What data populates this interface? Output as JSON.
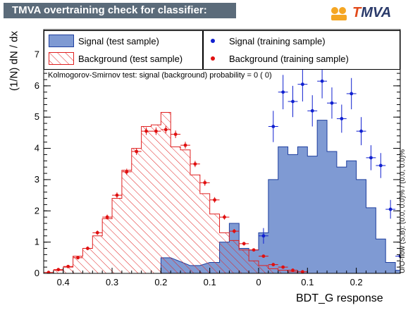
{
  "title": "TMVA overtraining check for classifier: BDT_G",
  "logo_text": "TMVA",
  "colors": {
    "title_bg": "#5b6b7a",
    "signal_fill": "#7f9ad3",
    "signal_line": "#1f3f9f",
    "background_hatch": "#e02020",
    "signal_marker": "#1020d0",
    "background_marker": "#e01010"
  },
  "chart_data": {
    "type": "histogram",
    "title": "TMVA overtraining check for classifier: BDT_G",
    "xlabel": "BDT_G response",
    "ylabel": "(1/N) dN / dx",
    "x_axis_reversed": true,
    "xlim": [
      0.44,
      -0.29
    ],
    "ylim": [
      0,
      7.8
    ],
    "x_ticks": [
      "0.4",
      "0.3",
      "0.2",
      "0.1",
      "0",
      "0.1",
      "0.2"
    ],
    "y_ticks": [
      "0",
      "1",
      "2",
      "3",
      "4",
      "5",
      "6",
      "7"
    ],
    "bin_width": 0.02,
    "legend": [
      {
        "label": "Signal (test sample)",
        "style": "filled-blue"
      },
      {
        "label": "Background (test sample)",
        "style": "hatched-red"
      },
      {
        "label": "Signal (training sample)",
        "style": "blue-points"
      },
      {
        "label": "Background (training sample)",
        "style": "red-points"
      }
    ],
    "annotation": "Kolmogorov-Smirnov test: signal (background) probability =     0 (    0)",
    "side_note": "U/O-flow (S,B): (0.0, 0.0)% / (0.0, 0.0)%",
    "background_test": [
      {
        "x": 0.44,
        "y": 0.0
      },
      {
        "x": 0.42,
        "y": 0.1
      },
      {
        "x": 0.4,
        "y": 0.2
      },
      {
        "x": 0.38,
        "y": 0.55
      },
      {
        "x": 0.36,
        "y": 0.8
      },
      {
        "x": 0.34,
        "y": 1.2
      },
      {
        "x": 0.32,
        "y": 1.75
      },
      {
        "x": 0.3,
        "y": 2.4
      },
      {
        "x": 0.28,
        "y": 3.3
      },
      {
        "x": 0.26,
        "y": 4.0
      },
      {
        "x": 0.24,
        "y": 4.7
      },
      {
        "x": 0.22,
        "y": 4.75
      },
      {
        "x": 0.2,
        "y": 5.15
      },
      {
        "x": 0.18,
        "y": 4.05
      },
      {
        "x": 0.16,
        "y": 3.95
      },
      {
        "x": 0.14,
        "y": 3.15
      },
      {
        "x": 0.12,
        "y": 2.55
      },
      {
        "x": 0.1,
        "y": 1.9
      },
      {
        "x": 0.08,
        "y": 1.3
      },
      {
        "x": 0.06,
        "y": 1.05
      },
      {
        "x": 0.04,
        "y": 0.75
      },
      {
        "x": 0.02,
        "y": 0.4
      },
      {
        "x": 0.0,
        "y": 0.25
      },
      {
        "x": -0.02,
        "y": 0.15
      },
      {
        "x": -0.04,
        "y": 0.1
      },
      {
        "x": -0.06,
        "y": 0.05
      }
    ],
    "signal_test": [
      {
        "x": 0.2,
        "y": 0.5
      },
      {
        "x": 0.14,
        "y": 0.25
      },
      {
        "x": 0.1,
        "y": 0.35
      },
      {
        "x": 0.08,
        "y": 1.0
      },
      {
        "x": 0.06,
        "y": 1.6
      },
      {
        "x": 0.04,
        "y": 0.8
      },
      {
        "x": 0.02,
        "y": 0.75
      },
      {
        "x": 0.0,
        "y": 1.3
      },
      {
        "x": -0.02,
        "y": 3.0
      },
      {
        "x": -0.04,
        "y": 4.05
      },
      {
        "x": -0.06,
        "y": 3.8
      },
      {
        "x": -0.08,
        "y": 4.05
      },
      {
        "x": -0.1,
        "y": 3.75
      },
      {
        "x": -0.12,
        "y": 4.9
      },
      {
        "x": -0.14,
        "y": 3.9
      },
      {
        "x": -0.16,
        "y": 3.4
      },
      {
        "x": -0.18,
        "y": 3.6
      },
      {
        "x": -0.2,
        "y": 3.0
      },
      {
        "x": -0.22,
        "y": 2.1
      },
      {
        "x": -0.24,
        "y": 1.1
      },
      {
        "x": -0.26,
        "y": 0.35
      },
      {
        "x": -0.28,
        "y": 0.1
      }
    ],
    "background_train": [
      {
        "x": 0.43,
        "y": 0.03,
        "err": 0.02
      },
      {
        "x": 0.41,
        "y": 0.12,
        "err": 0.03
      },
      {
        "x": 0.39,
        "y": 0.22,
        "err": 0.04
      },
      {
        "x": 0.37,
        "y": 0.5,
        "err": 0.05
      },
      {
        "x": 0.35,
        "y": 0.8,
        "err": 0.06
      },
      {
        "x": 0.33,
        "y": 1.3,
        "err": 0.07
      },
      {
        "x": 0.31,
        "y": 1.8,
        "err": 0.08
      },
      {
        "x": 0.29,
        "y": 2.5,
        "err": 0.09
      },
      {
        "x": 0.27,
        "y": 3.25,
        "err": 0.1
      },
      {
        "x": 0.25,
        "y": 3.9,
        "err": 0.11
      },
      {
        "x": 0.23,
        "y": 4.55,
        "err": 0.12
      },
      {
        "x": 0.21,
        "y": 4.55,
        "err": 0.12
      },
      {
        "x": 0.19,
        "y": 4.6,
        "err": 0.12
      },
      {
        "x": 0.17,
        "y": 4.45,
        "err": 0.12
      },
      {
        "x": 0.15,
        "y": 4.1,
        "err": 0.11
      },
      {
        "x": 0.13,
        "y": 3.5,
        "err": 0.1
      },
      {
        "x": 0.11,
        "y": 2.9,
        "err": 0.1
      },
      {
        "x": 0.09,
        "y": 2.35,
        "err": 0.09
      },
      {
        "x": 0.07,
        "y": 1.8,
        "err": 0.08
      },
      {
        "x": 0.05,
        "y": 1.35,
        "err": 0.07
      },
      {
        "x": 0.03,
        "y": 0.95,
        "err": 0.06
      },
      {
        "x": 0.01,
        "y": 0.75,
        "err": 0.05
      },
      {
        "x": -0.01,
        "y": 0.55,
        "err": 0.05
      },
      {
        "x": -0.03,
        "y": 0.28,
        "err": 0.04
      },
      {
        "x": -0.05,
        "y": 0.2,
        "err": 0.03
      },
      {
        "x": -0.07,
        "y": 0.1,
        "err": 0.03
      },
      {
        "x": -0.09,
        "y": 0.05,
        "err": 0.02
      }
    ],
    "signal_train": [
      {
        "x": -0.01,
        "y": 1.2,
        "err": 0.25
      },
      {
        "x": -0.03,
        "y": 4.7,
        "err": 0.5
      },
      {
        "x": -0.05,
        "y": 5.8,
        "err": 0.55
      },
      {
        "x": -0.07,
        "y": 5.5,
        "err": 0.5
      },
      {
        "x": -0.09,
        "y": 6.05,
        "err": 0.55
      },
      {
        "x": -0.11,
        "y": 5.2,
        "err": 0.5
      },
      {
        "x": -0.13,
        "y": 6.15,
        "err": 0.55
      },
      {
        "x": -0.15,
        "y": 5.45,
        "err": 0.5
      },
      {
        "x": -0.17,
        "y": 4.95,
        "err": 0.45
      },
      {
        "x": -0.19,
        "y": 5.75,
        "err": 0.5
      },
      {
        "x": -0.21,
        "y": 4.55,
        "err": 0.45
      },
      {
        "x": -0.23,
        "y": 3.7,
        "err": 0.4
      },
      {
        "x": -0.25,
        "y": 3.45,
        "err": 0.4
      },
      {
        "x": -0.27,
        "y": 2.05,
        "err": 0.3
      },
      {
        "x": -0.29,
        "y": 0.55,
        "err": 0.15
      },
      {
        "x": -0.31,
        "y": 0.3,
        "err": 0.1
      },
      {
        "x": -0.33,
        "y": 0.12,
        "err": 0.08
      }
    ]
  }
}
